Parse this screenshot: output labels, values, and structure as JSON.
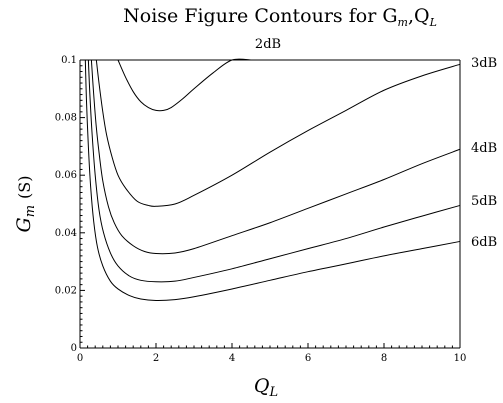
{
  "chart_data": {
    "type": "line",
    "title": "Noise Figure Contours for G",
    "title_sub_m": "m",
    "title_mid": ",Q",
    "title_sub_L": "L",
    "xlabel": "Q",
    "xlabel_sub": "L",
    "ylabel": "G",
    "ylabel_sub": "m",
    "ylabel_unit": "(S)",
    "xlim": [
      0,
      10
    ],
    "ylim": [
      0,
      0.1
    ],
    "xticks": [
      {
        "v": 0,
        "label": "0"
      },
      {
        "v": 2,
        "label": "2"
      },
      {
        "v": 4,
        "label": "4"
      },
      {
        "v": 6,
        "label": "6"
      },
      {
        "v": 8,
        "label": "8"
      },
      {
        "v": 10,
        "label": "10"
      }
    ],
    "yticks": [
      {
        "v": 0,
        "label": "0"
      },
      {
        "v": 0.02,
        "label": "0.02"
      },
      {
        "v": 0.04,
        "label": "0.04"
      },
      {
        "v": 0.06,
        "label": "0.06"
      },
      {
        "v": 0.08,
        "label": "0.08"
      },
      {
        "v": 0.1,
        "label": "0.1"
      }
    ],
    "grid": false,
    "series": [
      {
        "name": "2dB",
        "x": [
          1.0,
          1.2,
          1.4,
          1.6,
          1.8,
          2.0,
          2.2,
          2.4,
          2.7,
          3.0,
          3.5,
          4.0,
          4.5
        ],
        "y": [
          0.1,
          0.094,
          0.089,
          0.0855,
          0.0835,
          0.0825,
          0.0825,
          0.0835,
          0.0865,
          0.09,
          0.0955,
          0.1,
          0.1
        ]
      },
      {
        "name": "3dB",
        "x": [
          0.43,
          0.5,
          0.6,
          0.7,
          0.85,
          1.0,
          1.2,
          1.5,
          1.8,
          2.0,
          2.5,
          3.0,
          4.0,
          5.0,
          6.0,
          7.0,
          8.0,
          9.0,
          10.0
        ],
        "y": [
          0.1,
          0.092,
          0.082,
          0.074,
          0.066,
          0.06,
          0.0555,
          0.051,
          0.0495,
          0.0492,
          0.05,
          0.053,
          0.06,
          0.068,
          0.0755,
          0.0825,
          0.0895,
          0.0945,
          0.0985
        ]
      },
      {
        "name": "4dB",
        "x": [
          0.3,
          0.35,
          0.42,
          0.5,
          0.6,
          0.75,
          0.9,
          1.1,
          1.4,
          1.7,
          2.0,
          2.5,
          3.0,
          4.0,
          5.0,
          6.0,
          7.0,
          8.0,
          9.0,
          10.0
        ],
        "y": [
          0.1,
          0.09,
          0.078,
          0.068,
          0.058,
          0.049,
          0.0435,
          0.039,
          0.0355,
          0.0335,
          0.0328,
          0.033,
          0.0345,
          0.039,
          0.0435,
          0.0485,
          0.0535,
          0.0585,
          0.064,
          0.069
        ]
      },
      {
        "name": "5dB",
        "x": [
          0.22,
          0.26,
          0.32,
          0.4,
          0.5,
          0.62,
          0.8,
          1.0,
          1.3,
          1.6,
          2.0,
          2.5,
          3.0,
          4.0,
          5.0,
          6.0,
          7.0,
          8.0,
          9.0,
          10.0
        ],
        "y": [
          0.1,
          0.088,
          0.074,
          0.06,
          0.048,
          0.04,
          0.033,
          0.0285,
          0.025,
          0.0235,
          0.023,
          0.0232,
          0.0245,
          0.0275,
          0.031,
          0.0345,
          0.038,
          0.042,
          0.0458,
          0.0495
        ]
      },
      {
        "name": "6dB",
        "x": [
          0.14,
          0.17,
          0.22,
          0.28,
          0.36,
          0.46,
          0.6,
          0.8,
          1.0,
          1.3,
          1.6,
          2.0,
          2.5,
          3.0,
          4.0,
          5.0,
          6.0,
          7.0,
          8.0,
          9.0,
          10.0
        ],
        "y": [
          0.1,
          0.086,
          0.07,
          0.056,
          0.044,
          0.035,
          0.0285,
          0.0232,
          0.0205,
          0.0182,
          0.017,
          0.0165,
          0.0168,
          0.0178,
          0.0205,
          0.0235,
          0.0265,
          0.0292,
          0.032,
          0.0345,
          0.037
        ]
      }
    ],
    "annotations": [
      {
        "text": "2dB"
      },
      {
        "text": "3dB"
      },
      {
        "text": "4dB"
      },
      {
        "text": "5dB"
      },
      {
        "text": "6dB"
      }
    ]
  }
}
